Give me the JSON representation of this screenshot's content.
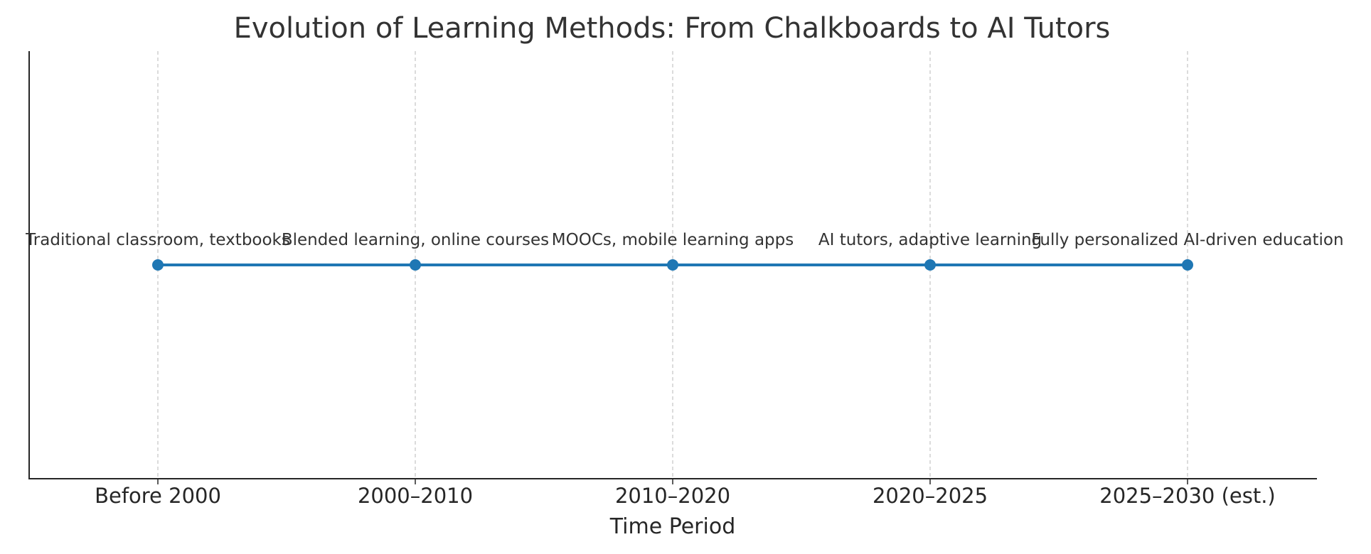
{
  "chart_data": {
    "type": "line",
    "title": "Evolution of Learning Methods: From Chalkboards to AI Tutors",
    "xlabel": "Time Period",
    "ylabel": "",
    "categories": [
      "Before 2000",
      "2000–2010",
      "2010–2020",
      "2020–2025",
      "2025–2030 (est.)"
    ],
    "values": [
      1,
      1,
      1,
      1,
      1
    ],
    "annotations": [
      "Traditional classroom, textbooks",
      "Blended learning, online courses",
      "MOOCs, mobile learning apps",
      "AI tutors, adaptive learning",
      "Fully personalized AI-driven education"
    ],
    "ylim": [
      0.5,
      1.5
    ],
    "grid": "x-dashed",
    "legend": "none",
    "colors": {
      "line": "#1f77b4",
      "grid": "#c8c8c8",
      "axis": "#262626",
      "title": "#333333",
      "annotation": "#333333"
    }
  }
}
